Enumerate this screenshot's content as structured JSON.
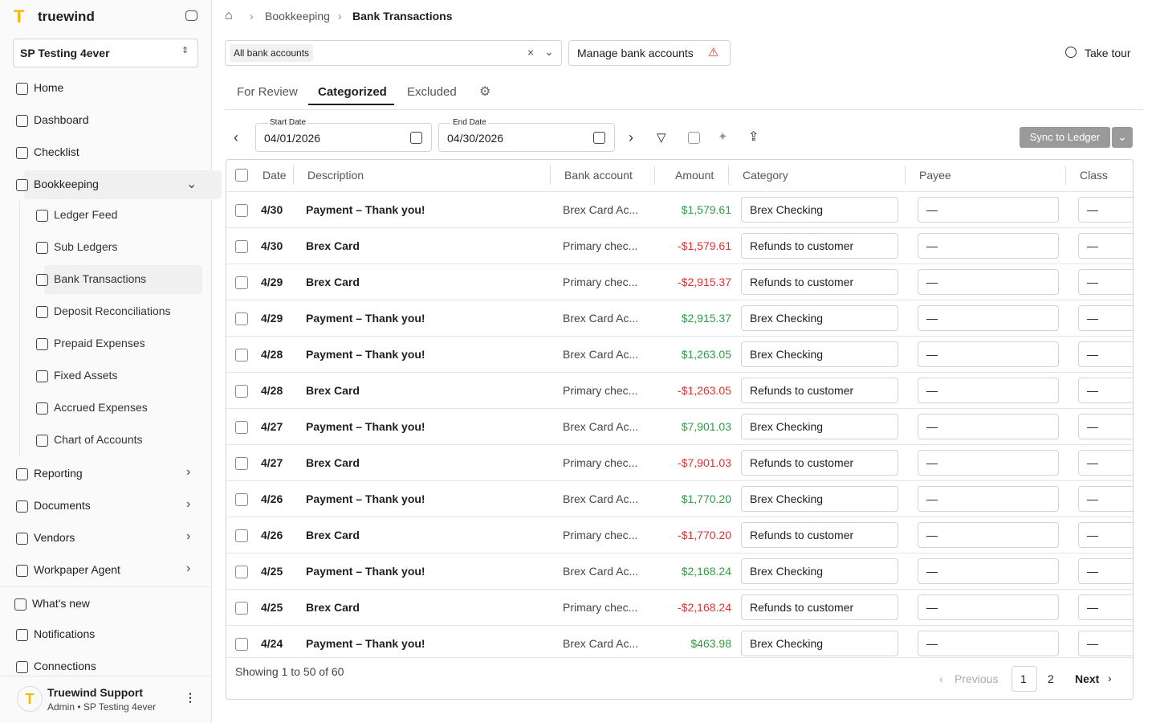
{
  "sidebar": {
    "brand": "truewind",
    "org": "SP Testing 4ever",
    "nav": [
      "Home",
      "Dashboard",
      "Checklist",
      "Bookkeeping"
    ],
    "bookkeeping_children": [
      "Ledger Feed",
      "Sub Ledgers",
      "Bank Transactions",
      "Deposit Reconciliations",
      "Prepaid Expenses",
      "Fixed Assets",
      "Accrued Expenses",
      "Chart of Accounts"
    ],
    "sections": [
      "Reporting",
      "Documents",
      "Vendors",
      "Workpaper Agent"
    ],
    "footer_nav": [
      "What's new",
      "Notifications",
      "Connections"
    ],
    "user": {
      "name": "Truewind Support",
      "role": "Admin • SP Testing 4ever"
    }
  },
  "header": {
    "breadcrumb": [
      "Bookkeeping",
      "Bank Transactions"
    ]
  },
  "toolbar": {
    "account_filter": "All bank accounts",
    "manage": "Manage bank accounts",
    "tour": "Take tour"
  },
  "tabs": [
    "For Review",
    "Categorized",
    "Excluded"
  ],
  "dates": {
    "start_label": "Start Date",
    "start": "04/01/2026",
    "end_label": "End Date",
    "end": "04/30/2026"
  },
  "sync": "Sync to Ledger",
  "table": {
    "columns": [
      "Date",
      "Description",
      "Bank account",
      "Amount",
      "Category",
      "Payee",
      "Class"
    ],
    "rows": [
      [
        "4/30",
        "Payment – Thank you!",
        "Brex Card Ac...",
        "$1,579.61",
        "Brex Checking",
        "—",
        "—"
      ],
      [
        "4/30",
        "Brex Card",
        "Primary chec...",
        "-$1,579.61",
        "Refunds to customer",
        "—",
        "—"
      ],
      [
        "4/29",
        "Brex Card",
        "Primary chec...",
        "-$2,915.37",
        "Refunds to customer",
        "—",
        "—"
      ],
      [
        "4/29",
        "Payment – Thank you!",
        "Brex Card Ac...",
        "$2,915.37",
        "Brex Checking",
        "—",
        "—"
      ],
      [
        "4/28",
        "Payment – Thank you!",
        "Brex Card Ac...",
        "$1,263.05",
        "Brex Checking",
        "—",
        "—"
      ],
      [
        "4/28",
        "Brex Card",
        "Primary chec...",
        "-$1,263.05",
        "Refunds to customer",
        "—",
        "—"
      ],
      [
        "4/27",
        "Payment – Thank you!",
        "Brex Card Ac...",
        "$7,901.03",
        "Brex Checking",
        "—",
        "—"
      ],
      [
        "4/27",
        "Brex Card",
        "Primary chec...",
        "-$7,901.03",
        "Refunds to customer",
        "—",
        "—"
      ],
      [
        "4/26",
        "Payment – Thank you!",
        "Brex Card Ac...",
        "$1,770.20",
        "Brex Checking",
        "—",
        "—"
      ],
      [
        "4/26",
        "Brex Card",
        "Primary chec...",
        "-$1,770.20",
        "Refunds to customer",
        "—",
        "—"
      ],
      [
        "4/25",
        "Payment – Thank you!",
        "Brex Card Ac...",
        "$2,168.24",
        "Brex Checking",
        "—",
        "—"
      ],
      [
        "4/25",
        "Brex Card",
        "Primary chec...",
        "-$2,168.24",
        "Refunds to customer",
        "—",
        "—"
      ],
      [
        "4/24",
        "Payment – Thank you!",
        "Brex Card Ac...",
        "$463.98",
        "Brex Checking",
        "—",
        "—"
      ]
    ]
  },
  "pagination": {
    "summary": "Showing 1 to 50 of 60",
    "previous": "Previous",
    "pages": [
      "1",
      "2"
    ],
    "next": "Next"
  }
}
